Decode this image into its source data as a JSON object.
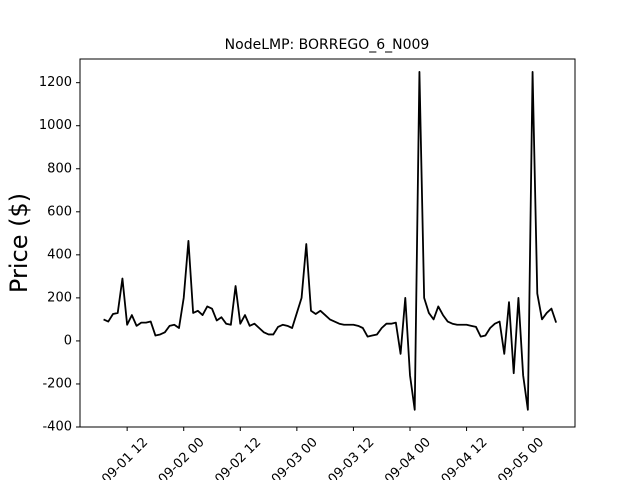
{
  "chart_data": {
    "type": "line",
    "title": "NodeLMP: BORREGO_6_N009",
    "y_label": "Price ($)",
    "x": [
      "09-01 07",
      "09-01 08",
      "09-01 09",
      "09-01 10",
      "09-01 11",
      "09-01 12",
      "09-01 13",
      "09-01 14",
      "09-01 15",
      "09-01 16",
      "09-01 17",
      "09-01 18",
      "09-01 19",
      "09-01 20",
      "09-01 21",
      "09-01 22",
      "09-01 23",
      "09-02 00",
      "09-02 01",
      "09-02 02",
      "09-02 03",
      "09-02 04",
      "09-02 05",
      "09-02 06",
      "09-02 07",
      "09-02 08",
      "09-02 09",
      "09-02 10",
      "09-02 11",
      "09-02 12",
      "09-02 13",
      "09-02 14",
      "09-02 15",
      "09-02 16",
      "09-02 17",
      "09-02 18",
      "09-02 19",
      "09-02 20",
      "09-02 21",
      "09-02 22",
      "09-02 23",
      "09-03 00",
      "09-03 01",
      "09-03 02",
      "09-03 03",
      "09-03 04",
      "09-03 05",
      "09-03 06",
      "09-03 07",
      "09-03 08",
      "09-03 09",
      "09-03 10",
      "09-03 11",
      "09-03 12",
      "09-03 13",
      "09-03 14",
      "09-03 15",
      "09-03 16",
      "09-03 17",
      "09-03 18",
      "09-03 19",
      "09-03 20",
      "09-03 21",
      "09-03 22",
      "09-03 23",
      "09-04 00",
      "09-04 01",
      "09-04 02",
      "09-04 03",
      "09-04 04",
      "09-04 05",
      "09-04 06",
      "09-04 07",
      "09-04 08",
      "09-04 09",
      "09-04 10",
      "09-04 11",
      "09-04 12",
      "09-04 13",
      "09-04 14",
      "09-04 15",
      "09-04 16",
      "09-04 17",
      "09-04 18",
      "09-04 19",
      "09-04 20",
      "09-04 21",
      "09-04 22",
      "09-04 23",
      "09-05 00",
      "09-05 01",
      "09-05 02",
      "09-05 03",
      "09-05 04",
      "09-05 05",
      "09-05 06",
      "09-05 07"
    ],
    "series": [
      {
        "color": "#000000",
        "values": [
          100,
          90,
          125,
          130,
          290,
          75,
          120,
          70,
          85,
          85,
          90,
          25,
          30,
          40,
          70,
          75,
          60,
          200,
          465,
          130,
          140,
          120,
          160,
          150,
          95,
          110,
          80,
          75,
          255,
          80,
          120,
          70,
          80,
          60,
          40,
          30,
          30,
          65,
          75,
          70,
          60,
          130,
          200,
          450,
          140,
          125,
          140,
          120,
          100,
          90,
          80,
          75,
          75,
          75,
          70,
          60,
          20,
          25,
          30,
          60,
          80,
          80,
          85,
          -60,
          200,
          -160,
          -320,
          1250,
          200,
          130,
          100,
          160,
          120,
          90,
          80,
          75,
          75,
          75,
          70,
          65,
          20,
          25,
          60,
          80,
          90,
          -60,
          180,
          -150,
          200,
          -160,
          -320,
          1250,
          220,
          100,
          130,
          150,
          85
        ]
      }
    ],
    "xlim": [
      "09-01 02",
      "09-05 11"
    ],
    "xticks": [
      "09-01 12",
      "09-02 00",
      "09-02 12",
      "09-03 00",
      "09-03 12",
      "09-04 00",
      "09-04 12",
      "09-05 00"
    ],
    "ylim": [
      -400,
      1310
    ],
    "yticks": [
      -400,
      -200,
      0,
      200,
      400,
      600,
      800,
      1000,
      1200
    ]
  }
}
